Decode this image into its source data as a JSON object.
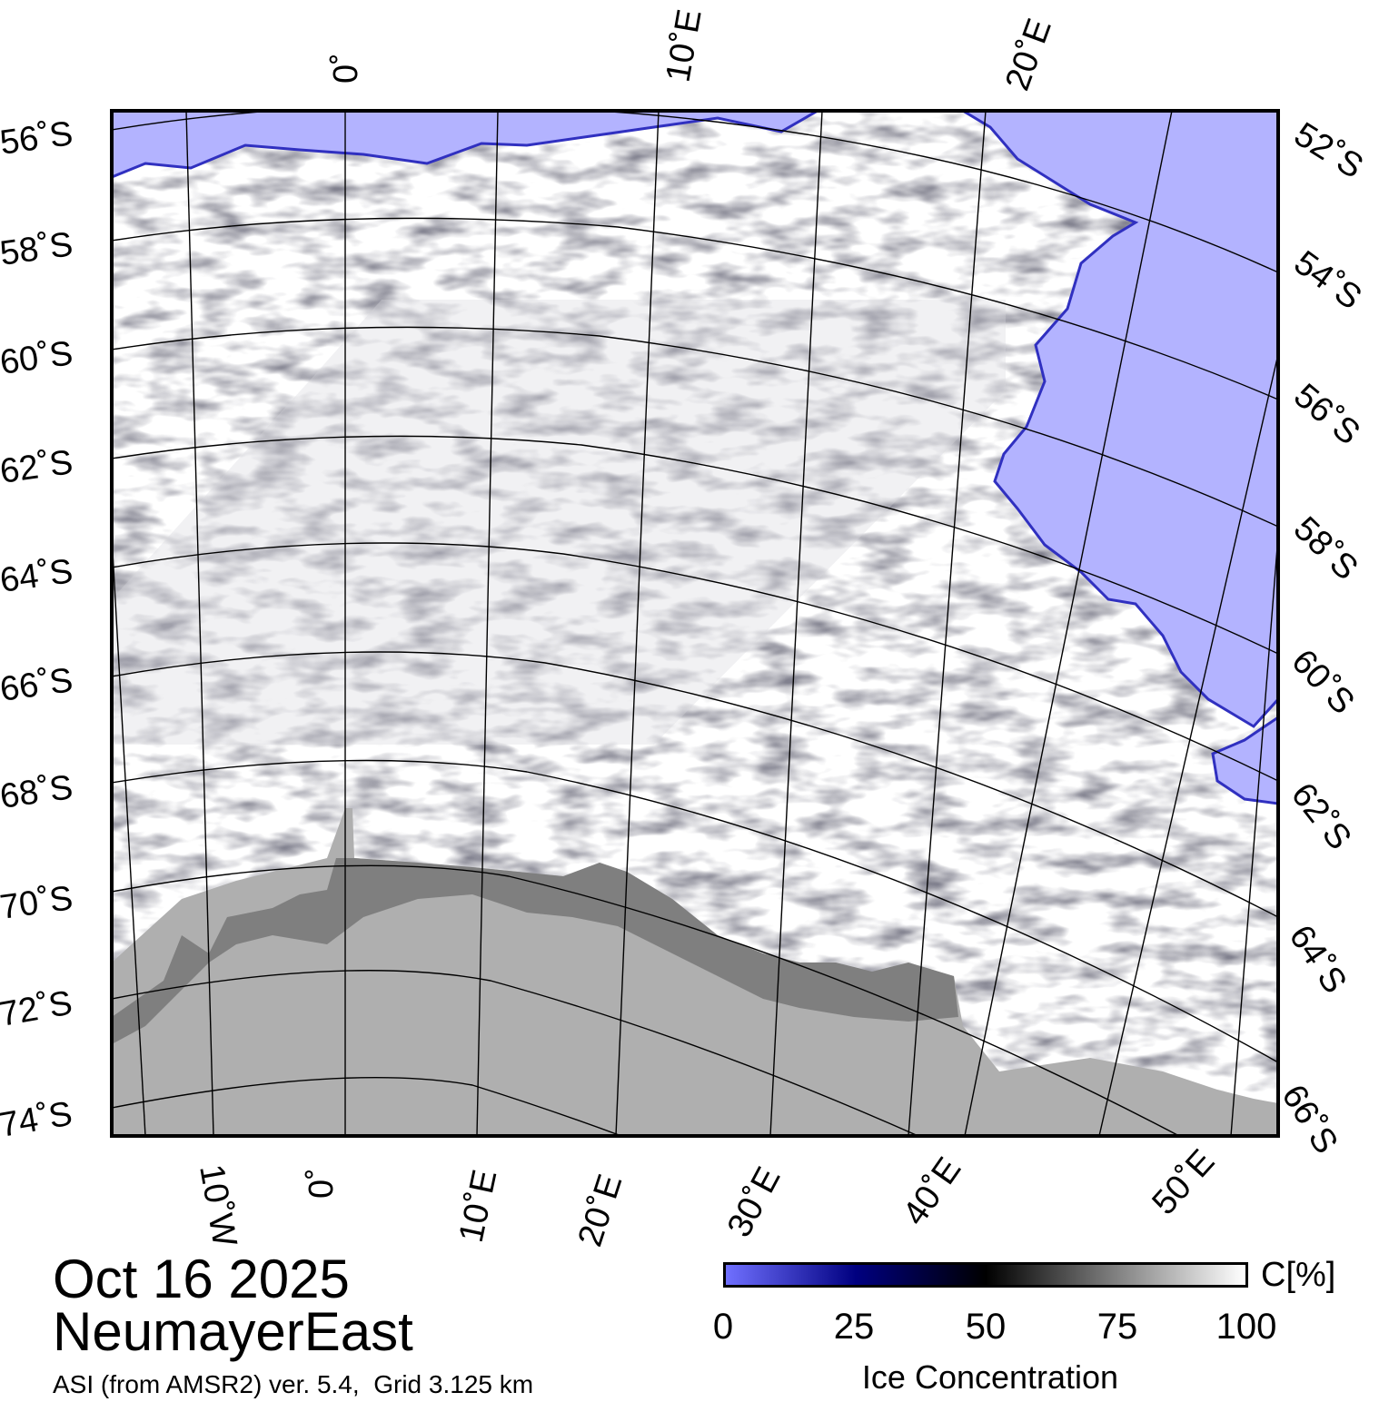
{
  "map": {
    "colors": {
      "open_water": "#b3b3ff",
      "land": "#afafaf",
      "ice_shelf": "#7f7f7f",
      "ice": "#ffffff",
      "frame": "#000000"
    },
    "top_lon_labels": [
      "0˚",
      "10˚E",
      "20˚E"
    ],
    "bottom_lon_labels": [
      "10˚W",
      "0˚",
      "10˚E",
      "20˚E",
      "30˚E",
      "40˚E",
      "50˚E"
    ],
    "left_lat_labels": [
      "56˚S",
      "58˚S",
      "60˚S",
      "62˚S",
      "64˚S",
      "66˚S",
      "68˚S",
      "70˚S",
      "72˚S",
      "74˚S"
    ],
    "right_lat_labels": [
      "52˚S",
      "54˚S",
      "56˚S",
      "58˚S",
      "60˚S",
      "62˚S",
      "64˚S",
      "66˚S"
    ]
  },
  "title": {
    "date": "Oct 16 2025",
    "region": "NeumayerEast"
  },
  "source_note": "ASI (from AMSR2) ver. 5.4,  Grid 3.125 km",
  "colorbar": {
    "unit": "C[%]",
    "ticks": [
      "0",
      "25",
      "50",
      "75",
      "100"
    ],
    "title": "Ice Concentration",
    "range": [
      0,
      100
    ],
    "stops": [
      "#7070ff",
      "#000080",
      "#000000",
      "#808080",
      "#ffffff"
    ]
  }
}
